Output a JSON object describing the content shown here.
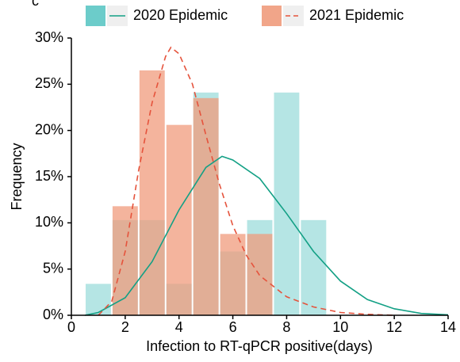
{
  "chart_data": {
    "type": "histogram-density",
    "panel_label": "c",
    "x_label": "Infection to RT-qPCR positive(days)",
    "y_label": "Frequency",
    "xlim": [
      0,
      14
    ],
    "xticks": [
      0,
      2,
      4,
      6,
      8,
      10,
      12,
      14
    ],
    "ylim": [
      0,
      30
    ],
    "yticks": [
      {
        "value": 0,
        "label": "0%"
      },
      {
        "value": 5,
        "label": "5%"
      },
      {
        "value": 10,
        "label": "10%"
      },
      {
        "value": 15,
        "label": "15%"
      },
      {
        "value": 20,
        "label": "20%"
      },
      {
        "value": 25,
        "label": "25%"
      },
      {
        "value": 30,
        "label": "30%"
      }
    ],
    "x": [
      1,
      2,
      3,
      4,
      5,
      6,
      7,
      8,
      9
    ],
    "series": [
      {
        "name": "2020 Epidemic",
        "color": "#5cc6c4",
        "line_color": "#13a085",
        "dashed": false,
        "values": [
          3.4,
          10.3,
          10.3,
          3.4,
          24.1,
          6.9,
          10.3,
          24.1,
          10.3
        ],
        "curve": {
          "x": [
            0.5,
            1,
            2,
            3,
            4,
            5,
            5.6,
            6,
            7,
            8,
            9,
            10,
            11,
            12,
            13,
            14
          ],
          "y": [
            0,
            0.3,
            1.9,
            5.8,
            11.4,
            16,
            17.2,
            16.8,
            14.8,
            11,
            6.9,
            3.7,
            1.7,
            0.7,
            0.2,
            0.05
          ]
        }
      },
      {
        "name": "2021 Epidemic",
        "color": "#f09b7c",
        "line_color": "#e5533c",
        "dashed": true,
        "values": [
          0,
          11.8,
          26.5,
          20.6,
          23.5,
          8.8,
          8.8,
          0,
          0
        ],
        "curve": {
          "x": [
            1,
            1.5,
            2,
            2.5,
            3,
            3.5,
            3.7,
            4,
            4.5,
            5,
            5.5,
            6,
            6.5,
            7,
            8,
            9,
            10,
            11,
            12
          ],
          "y": [
            0,
            1.5,
            6.9,
            15.7,
            23,
            28,
            29,
            28.3,
            25,
            19.5,
            14.2,
            9.7,
            6.5,
            4.3,
            2,
            0.9,
            0.3,
            0.1,
            0
          ]
        }
      }
    ]
  }
}
